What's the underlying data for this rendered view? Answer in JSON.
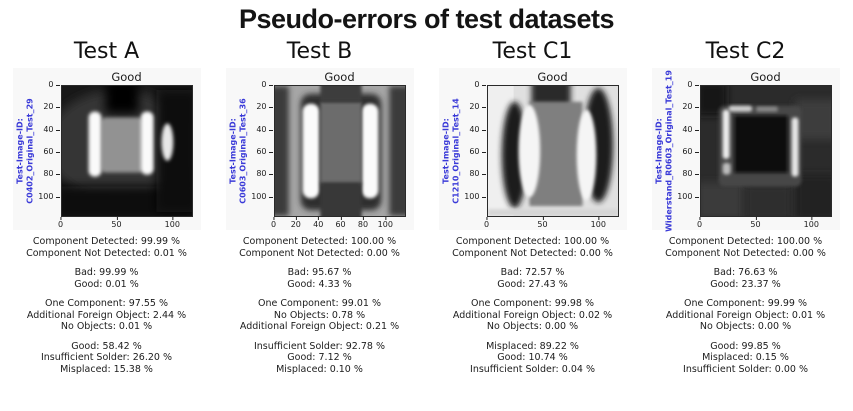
{
  "title": "Pseudo-errors of test datasets",
  "colors": {
    "id_label_blue": "#3a3ad8",
    "text": "#1a1a1a"
  },
  "panels": [
    {
      "title": "Test A",
      "subplot_title": "Good",
      "ylabel_line1": "Test-Image-ID:",
      "ylabel_line2": "C0402_Original_Test_29",
      "image": "xray-component-a",
      "y_ticks": [
        "0",
        "20",
        "40",
        "60",
        "80",
        "100"
      ],
      "x_ticks": [
        "0",
        "50",
        "100"
      ],
      "stats": [
        [
          "Component Detected: 99.99 %",
          "Component Not Detected: 0.01 %"
        ],
        [
          "Bad: 99.99 %",
          "Good: 0.01 %"
        ],
        [
          "One Component: 97.55 %",
          "Additional Foreign Object: 2.44 %",
          "No Objects: 0.01 %"
        ],
        [
          "Good: 58.42 %",
          "Insufficient Solder: 26.20 %",
          "Misplaced: 15.38 %"
        ]
      ]
    },
    {
      "title": "Test B",
      "subplot_title": "Good",
      "ylabel_line1": "Test-Image-ID:",
      "ylabel_line2": "C0603_Original_Test_36",
      "image": "xray-component-b",
      "y_ticks": [
        "0",
        "20",
        "40",
        "60",
        "80",
        "100"
      ],
      "x_ticks": [
        "0",
        "20",
        "40",
        "60",
        "80",
        "100"
      ],
      "stats": [
        [
          "Component Detected: 100.00 %",
          "Component Not Detected: 0.00 %"
        ],
        [
          "Bad: 95.67 %",
          "Good: 4.33 %"
        ],
        [
          "One Component: 99.01 %",
          "No Objects: 0.78 %",
          "Additional Foreign Object: 0.21 %"
        ],
        [
          "Insufficient Solder: 92.78 %",
          "Good: 7.12 %",
          "Misplaced: 0.10 %"
        ]
      ]
    },
    {
      "title": "Test C1",
      "subplot_title": "Good",
      "ylabel_line1": "Test-Image-ID:",
      "ylabel_line2": "C1210_Original_Test_14",
      "image": "xray-component-c1",
      "y_ticks": [
        "0",
        "20",
        "40",
        "60",
        "80",
        "100"
      ],
      "x_ticks": [
        "0",
        "50",
        "100"
      ],
      "stats": [
        [
          "Component Detected: 100.00 %",
          "Component Not Detected: 0.00 %"
        ],
        [
          "Bad: 72.57 %",
          "Good: 27.43 %"
        ],
        [
          "One Component: 99.98 %",
          "Additional Foreign Object: 0.02 %",
          "No Objects: 0.00 %"
        ],
        [
          "Misplaced: 89.22 %",
          "Good: 10.74 %",
          "Insufficient Solder: 0.04 %"
        ]
      ]
    },
    {
      "title": "Test C2",
      "subplot_title": "Good",
      "ylabel_line1": "Test-Image-ID:",
      "ylabel_line2": "Widerstand_R0603_Original_Test_19",
      "image": "xray-component-c2",
      "y_ticks": [
        "0",
        "20",
        "40",
        "60",
        "80",
        "100"
      ],
      "x_ticks": [
        "0",
        "50",
        "100"
      ],
      "stats": [
        [
          "Component Detected: 100.00 %",
          "Component Not Detected: 0.00 %"
        ],
        [
          "Bad: 76.63 %",
          "Good: 23.37 %"
        ],
        [
          "One Component: 99.99 %",
          "Additional Foreign Object: 0.01 %",
          "No Objects: 0.00 %"
        ],
        [
          "Good: 99.85 %",
          "Misplaced: 0.15 %",
          "Insufficient Solder: 0.00 %"
        ]
      ]
    }
  ],
  "chart_data": [
    {
      "type": "table",
      "title": "Test A",
      "subtitle": "Good",
      "image_id": "C0402_Original_Test_29",
      "axis": {
        "x_ticks": [
          0,
          50,
          100
        ],
        "y_ticks": [
          0,
          20,
          40,
          60,
          80,
          100
        ]
      },
      "unit": "%",
      "metrics": {
        "component_detection": {
          "Component Detected": 99.99,
          "Component Not Detected": 0.01
        },
        "good_bad": {
          "Bad": 99.99,
          "Good": 0.01
        },
        "object_count": {
          "One Component": 97.55,
          "Additional Foreign Object": 2.44,
          "No Objects": 0.01
        },
        "defect_type": {
          "Good": 58.42,
          "Insufficient Solder": 26.2,
          "Misplaced": 15.38
        }
      }
    },
    {
      "type": "table",
      "title": "Test B",
      "subtitle": "Good",
      "image_id": "C0603_Original_Test_36",
      "axis": {
        "x_ticks": [
          0,
          20,
          40,
          60,
          80,
          100
        ],
        "y_ticks": [
          0,
          20,
          40,
          60,
          80,
          100
        ]
      },
      "unit": "%",
      "metrics": {
        "component_detection": {
          "Component Detected": 100.0,
          "Component Not Detected": 0.0
        },
        "good_bad": {
          "Bad": 95.67,
          "Good": 4.33
        },
        "object_count": {
          "One Component": 99.01,
          "No Objects": 0.78,
          "Additional Foreign Object": 0.21
        },
        "defect_type": {
          "Insufficient Solder": 92.78,
          "Good": 7.12,
          "Misplaced": 0.1
        }
      }
    },
    {
      "type": "table",
      "title": "Test C1",
      "subtitle": "Good",
      "image_id": "C1210_Original_Test_14",
      "axis": {
        "x_ticks": [
          0,
          50,
          100
        ],
        "y_ticks": [
          0,
          20,
          40,
          60,
          80,
          100
        ]
      },
      "unit": "%",
      "metrics": {
        "component_detection": {
          "Component Detected": 100.0,
          "Component Not Detected": 0.0
        },
        "good_bad": {
          "Bad": 72.57,
          "Good": 27.43
        },
        "object_count": {
          "One Component": 99.98,
          "Additional Foreign Object": 0.02,
          "No Objects": 0.0
        },
        "defect_type": {
          "Misplaced": 89.22,
          "Good": 10.74,
          "Insufficient Solder": 0.04
        }
      }
    },
    {
      "type": "table",
      "title": "Test C2",
      "subtitle": "Good",
      "image_id": "Widerstand_R0603_Original_Test_19",
      "axis": {
        "x_ticks": [
          0,
          50,
          100
        ],
        "y_ticks": [
          0,
          20,
          40,
          60,
          80,
          100
        ]
      },
      "unit": "%",
      "metrics": {
        "component_detection": {
          "Component Detected": 100.0,
          "Component Not Detected": 0.0
        },
        "good_bad": {
          "Bad": 76.63,
          "Good": 23.37
        },
        "object_count": {
          "One Component": 99.99,
          "Additional Foreign Object": 0.01,
          "No Objects": 0.0
        },
        "defect_type": {
          "Good": 99.85,
          "Misplaced": 0.15,
          "Insufficient Solder": 0.0
        }
      }
    }
  ]
}
